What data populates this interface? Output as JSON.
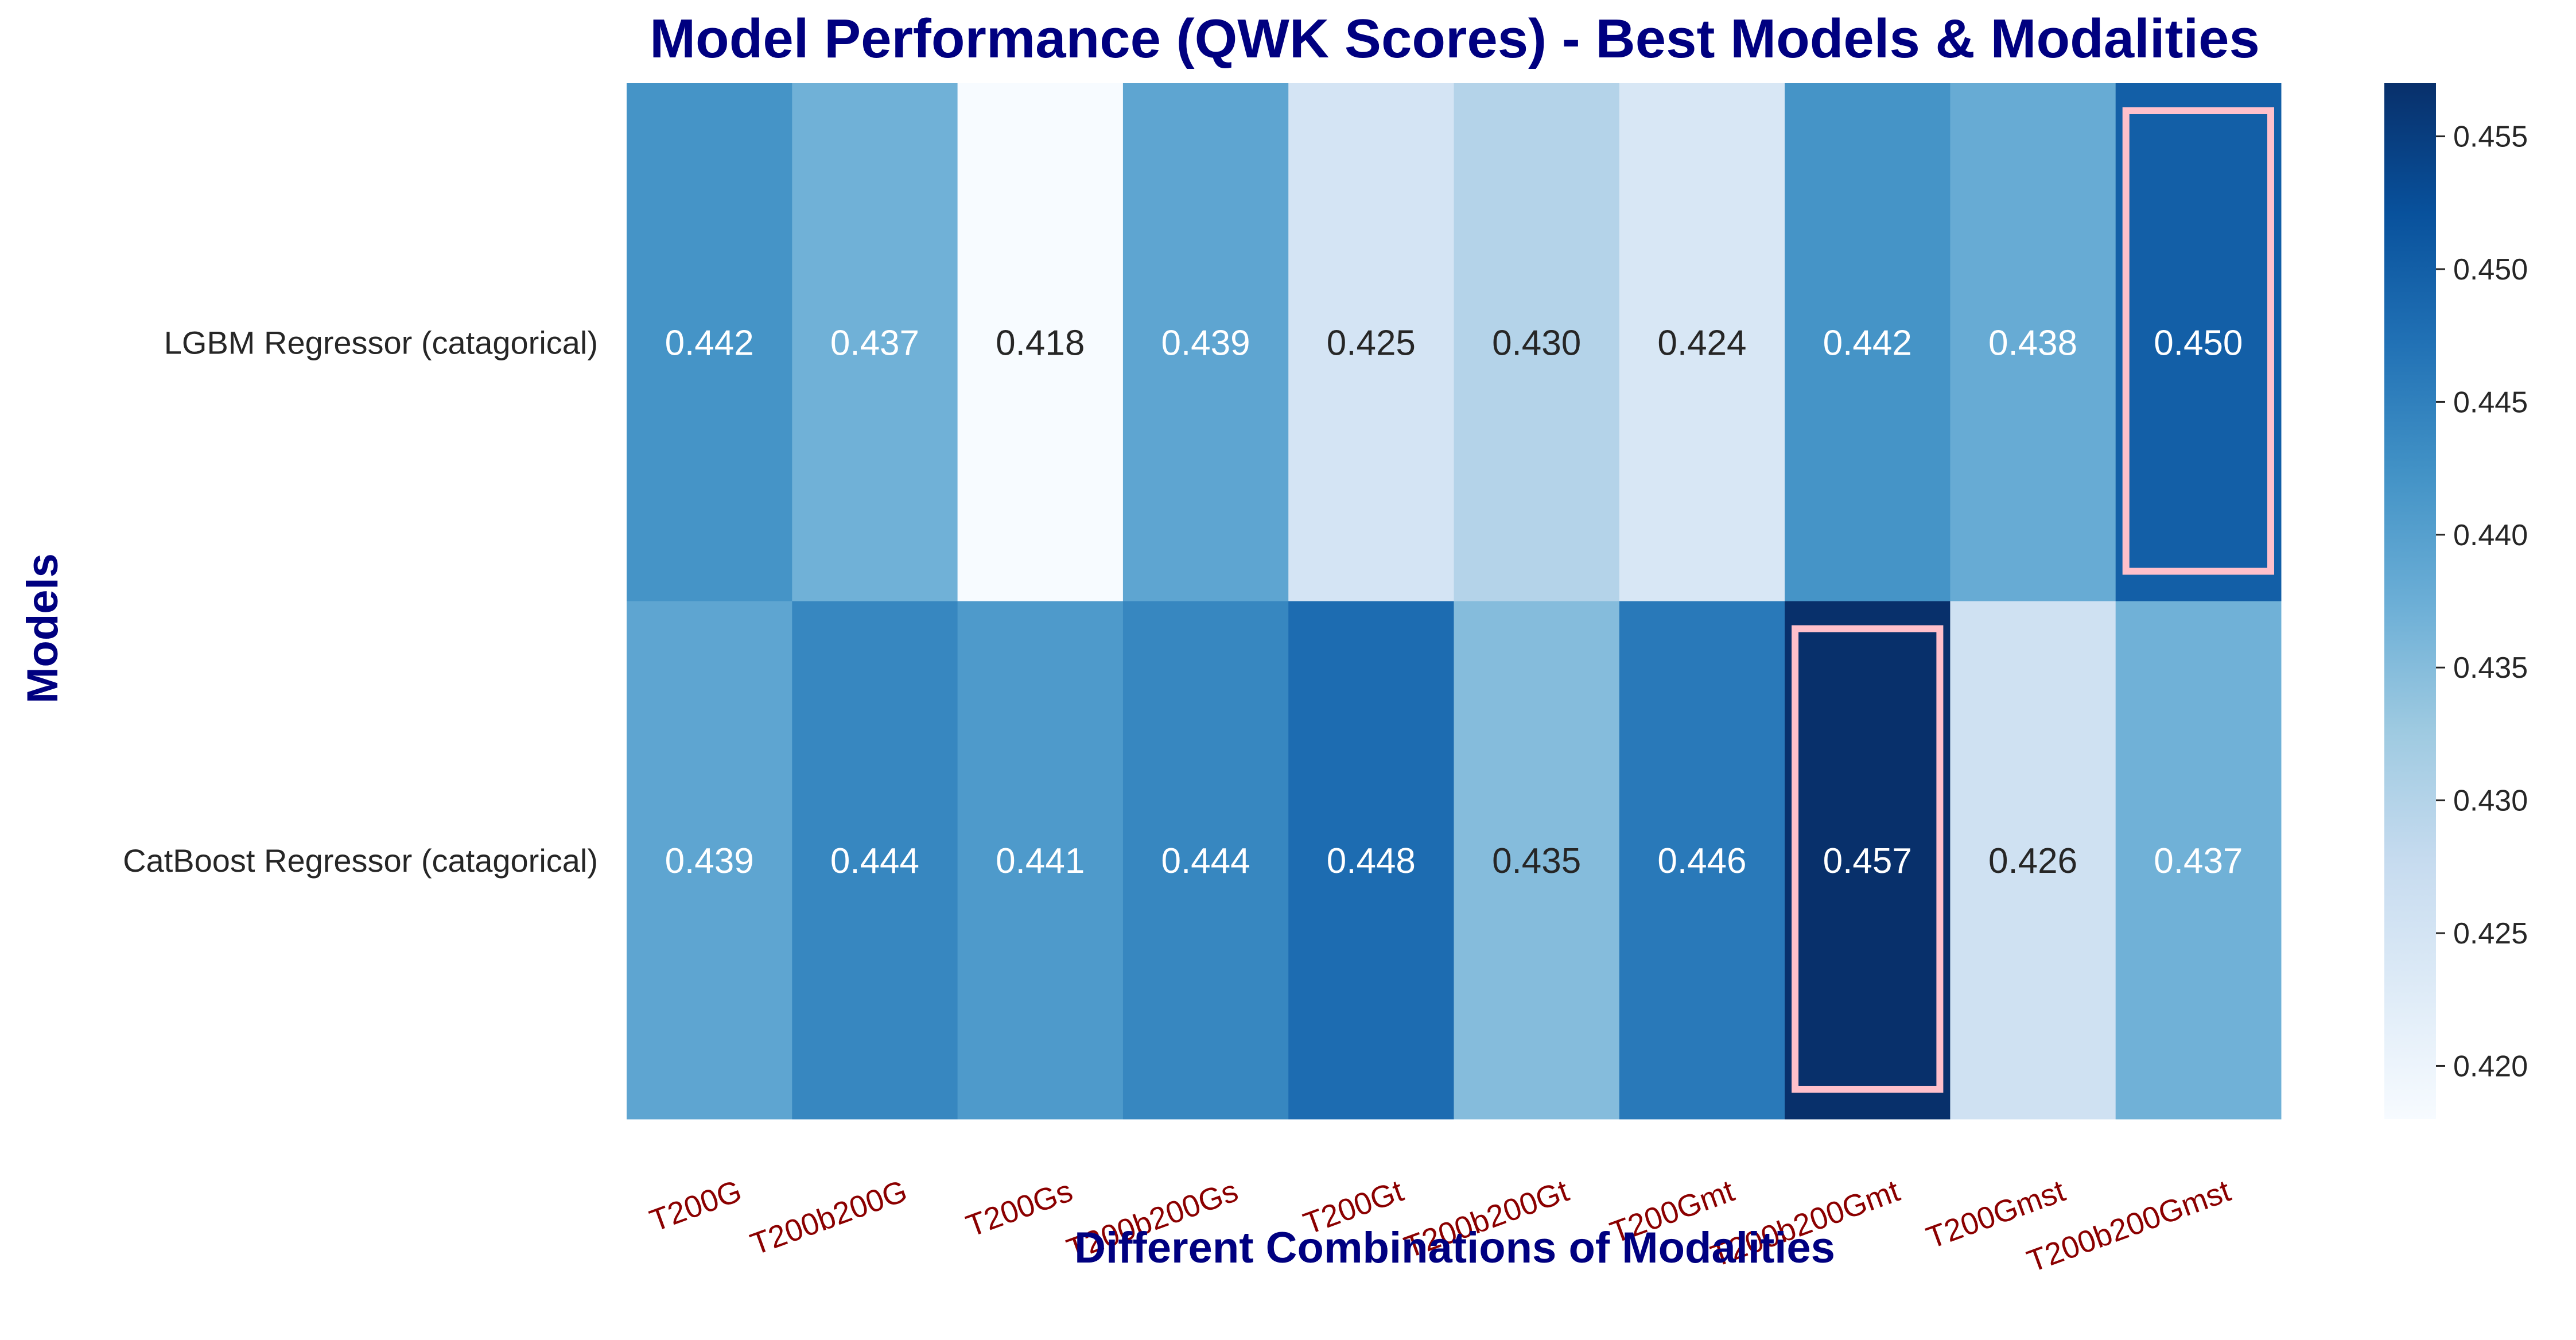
{
  "chart_data": {
    "type": "heatmap",
    "title": "Model Performance (QWK Scores) - Best Models & Modalities",
    "xlabel": "Different Combinations of Modalities",
    "ylabel": "Models",
    "columns": [
      "T200G",
      "T200b200G",
      "T200Gs",
      "T200b200Gs",
      "T200Gt",
      "T200b200Gt",
      "T200Gmt",
      "T200b200Gmt",
      "T200Gmst",
      "T200b200Gmst"
    ],
    "rows": [
      "LGBM Regressor (catagorical)",
      "CatBoost Regressor (catagorical)"
    ],
    "values": [
      [
        0.442,
        0.437,
        0.418,
        0.439,
        0.425,
        0.43,
        0.424,
        0.442,
        0.438,
        0.45
      ],
      [
        0.439,
        0.444,
        0.441,
        0.444,
        0.448,
        0.435,
        0.446,
        0.457,
        0.426,
        0.437
      ]
    ],
    "value_labels": [
      [
        "0.442",
        "0.437",
        "0.418",
        "0.439",
        "0.425",
        "0.430",
        "0.424",
        "0.442",
        "0.438",
        "0.450"
      ],
      [
        "0.439",
        "0.444",
        "0.441",
        "0.444",
        "0.448",
        "0.435",
        "0.446",
        "0.457",
        "0.426",
        "0.437"
      ]
    ],
    "colormap": "Blues",
    "color_range": [
      0.418,
      0.457
    ],
    "colorbar_ticks": [
      "0.420",
      "0.425",
      "0.430",
      "0.435",
      "0.440",
      "0.445",
      "0.450",
      "0.455"
    ],
    "highlighted_cells": [
      {
        "row": 0,
        "col": 9
      },
      {
        "row": 1,
        "col": 7
      }
    ],
    "highlight_color": "#ffc0cb",
    "title_color": "#000080",
    "xtick_color": "#8b0000"
  }
}
